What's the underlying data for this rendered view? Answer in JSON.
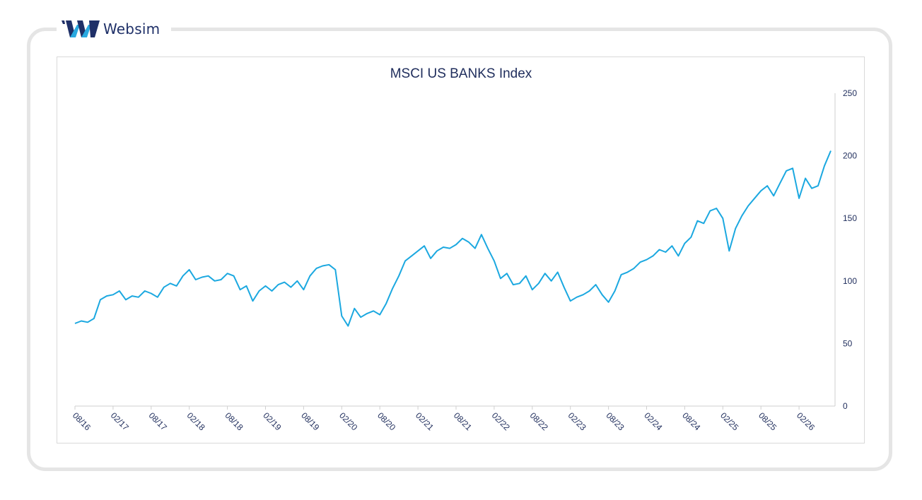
{
  "brand": {
    "name": "Websim",
    "colors": {
      "dark": "#1f3068",
      "light": "#29a9e0"
    }
  },
  "chart_data": {
    "type": "line",
    "title": "MSCI US BANKS Index",
    "xlabel": "",
    "ylabel": "",
    "ylim": [
      0,
      250
    ],
    "y_ticks": [
      0,
      50,
      100,
      150,
      200,
      250
    ],
    "y_axis_side": "right",
    "x_ticks": [
      "08/16",
      "02/17",
      "08/17",
      "02/18",
      "08/18",
      "02/19",
      "08/19",
      "02/20",
      "08/20",
      "02/21",
      "08/21",
      "02/22",
      "08/22",
      "02/23",
      "08/23",
      "02/24",
      "08/24",
      "02/25",
      "08/25",
      "02/26"
    ],
    "line_color": "#1ba8e0",
    "grid": false,
    "legend": "none",
    "series": [
      {
        "x": [
          "08/16",
          "09/16",
          "10/16",
          "11/16",
          "12/16",
          "01/17",
          "02/17",
          "03/17",
          "04/17",
          "05/17",
          "06/17",
          "07/17",
          "08/17",
          "09/17",
          "10/17",
          "11/17",
          "12/17",
          "01/18",
          "02/18",
          "03/18",
          "04/18",
          "05/18",
          "06/18",
          "07/18",
          "08/18",
          "09/18",
          "10/18",
          "11/18",
          "12/18",
          "01/19",
          "02/19",
          "03/19",
          "04/19",
          "05/19",
          "06/19",
          "07/19",
          "08/19",
          "09/19",
          "10/19",
          "11/19",
          "12/19",
          "01/20",
          "02/20",
          "03/20",
          "04/20",
          "05/20",
          "06/20",
          "07/20",
          "08/20",
          "09/20",
          "10/20",
          "11/20",
          "12/20",
          "01/21",
          "02/21",
          "03/21",
          "04/21",
          "05/21",
          "06/21",
          "07/21",
          "08/21",
          "09/21",
          "10/21",
          "11/21",
          "12/21",
          "01/22",
          "02/22",
          "03/22",
          "04/22",
          "05/22",
          "06/22",
          "07/22",
          "08/22",
          "09/22",
          "10/22",
          "11/22",
          "12/22",
          "01/23",
          "02/23",
          "03/23",
          "04/23",
          "05/23",
          "06/23",
          "07/23",
          "08/23",
          "09/23",
          "10/23",
          "11/23",
          "12/23",
          "01/24",
          "02/24",
          "03/24",
          "04/24",
          "05/24",
          "06/24",
          "07/24",
          "08/24",
          "09/24",
          "10/24",
          "11/24",
          "12/24",
          "01/25",
          "02/25",
          "03/25",
          "04/25",
          "05/25",
          "06/25",
          "07/25",
          "08/25",
          "09/25",
          "10/25",
          "11/25",
          "12/25",
          "01/26",
          "02/26",
          "03/26",
          "04/26",
          "05/26",
          "06/26",
          "07/26"
        ],
        "values": [
          66,
          68,
          67,
          70,
          85,
          88,
          89,
          92,
          85,
          88,
          87,
          92,
          90,
          87,
          95,
          98,
          96,
          104,
          109,
          101,
          103,
          104,
          100,
          101,
          106,
          104,
          93,
          96,
          84,
          92,
          96,
          92,
          97,
          99,
          95,
          100,
          93,
          104,
          110,
          112,
          113,
          109,
          72,
          64,
          78,
          71,
          74,
          76,
          73,
          82,
          94,
          104,
          116,
          120,
          124,
          128,
          118,
          124,
          127,
          126,
          129,
          134,
          131,
          126,
          137,
          126,
          116,
          102,
          106,
          97,
          98,
          104,
          93,
          98,
          106,
          100,
          107,
          95,
          84,
          87,
          89,
          92,
          97,
          89,
          83,
          92,
          105,
          107,
          110,
          115,
          117,
          120,
          125,
          123,
          128,
          120,
          130,
          135,
          148,
          146,
          156,
          158,
          150,
          124,
          142,
          152,
          160,
          166,
          172,
          176,
          168,
          178,
          188,
          190,
          166,
          182,
          174,
          176,
          192,
          204
        ]
      }
    ]
  }
}
